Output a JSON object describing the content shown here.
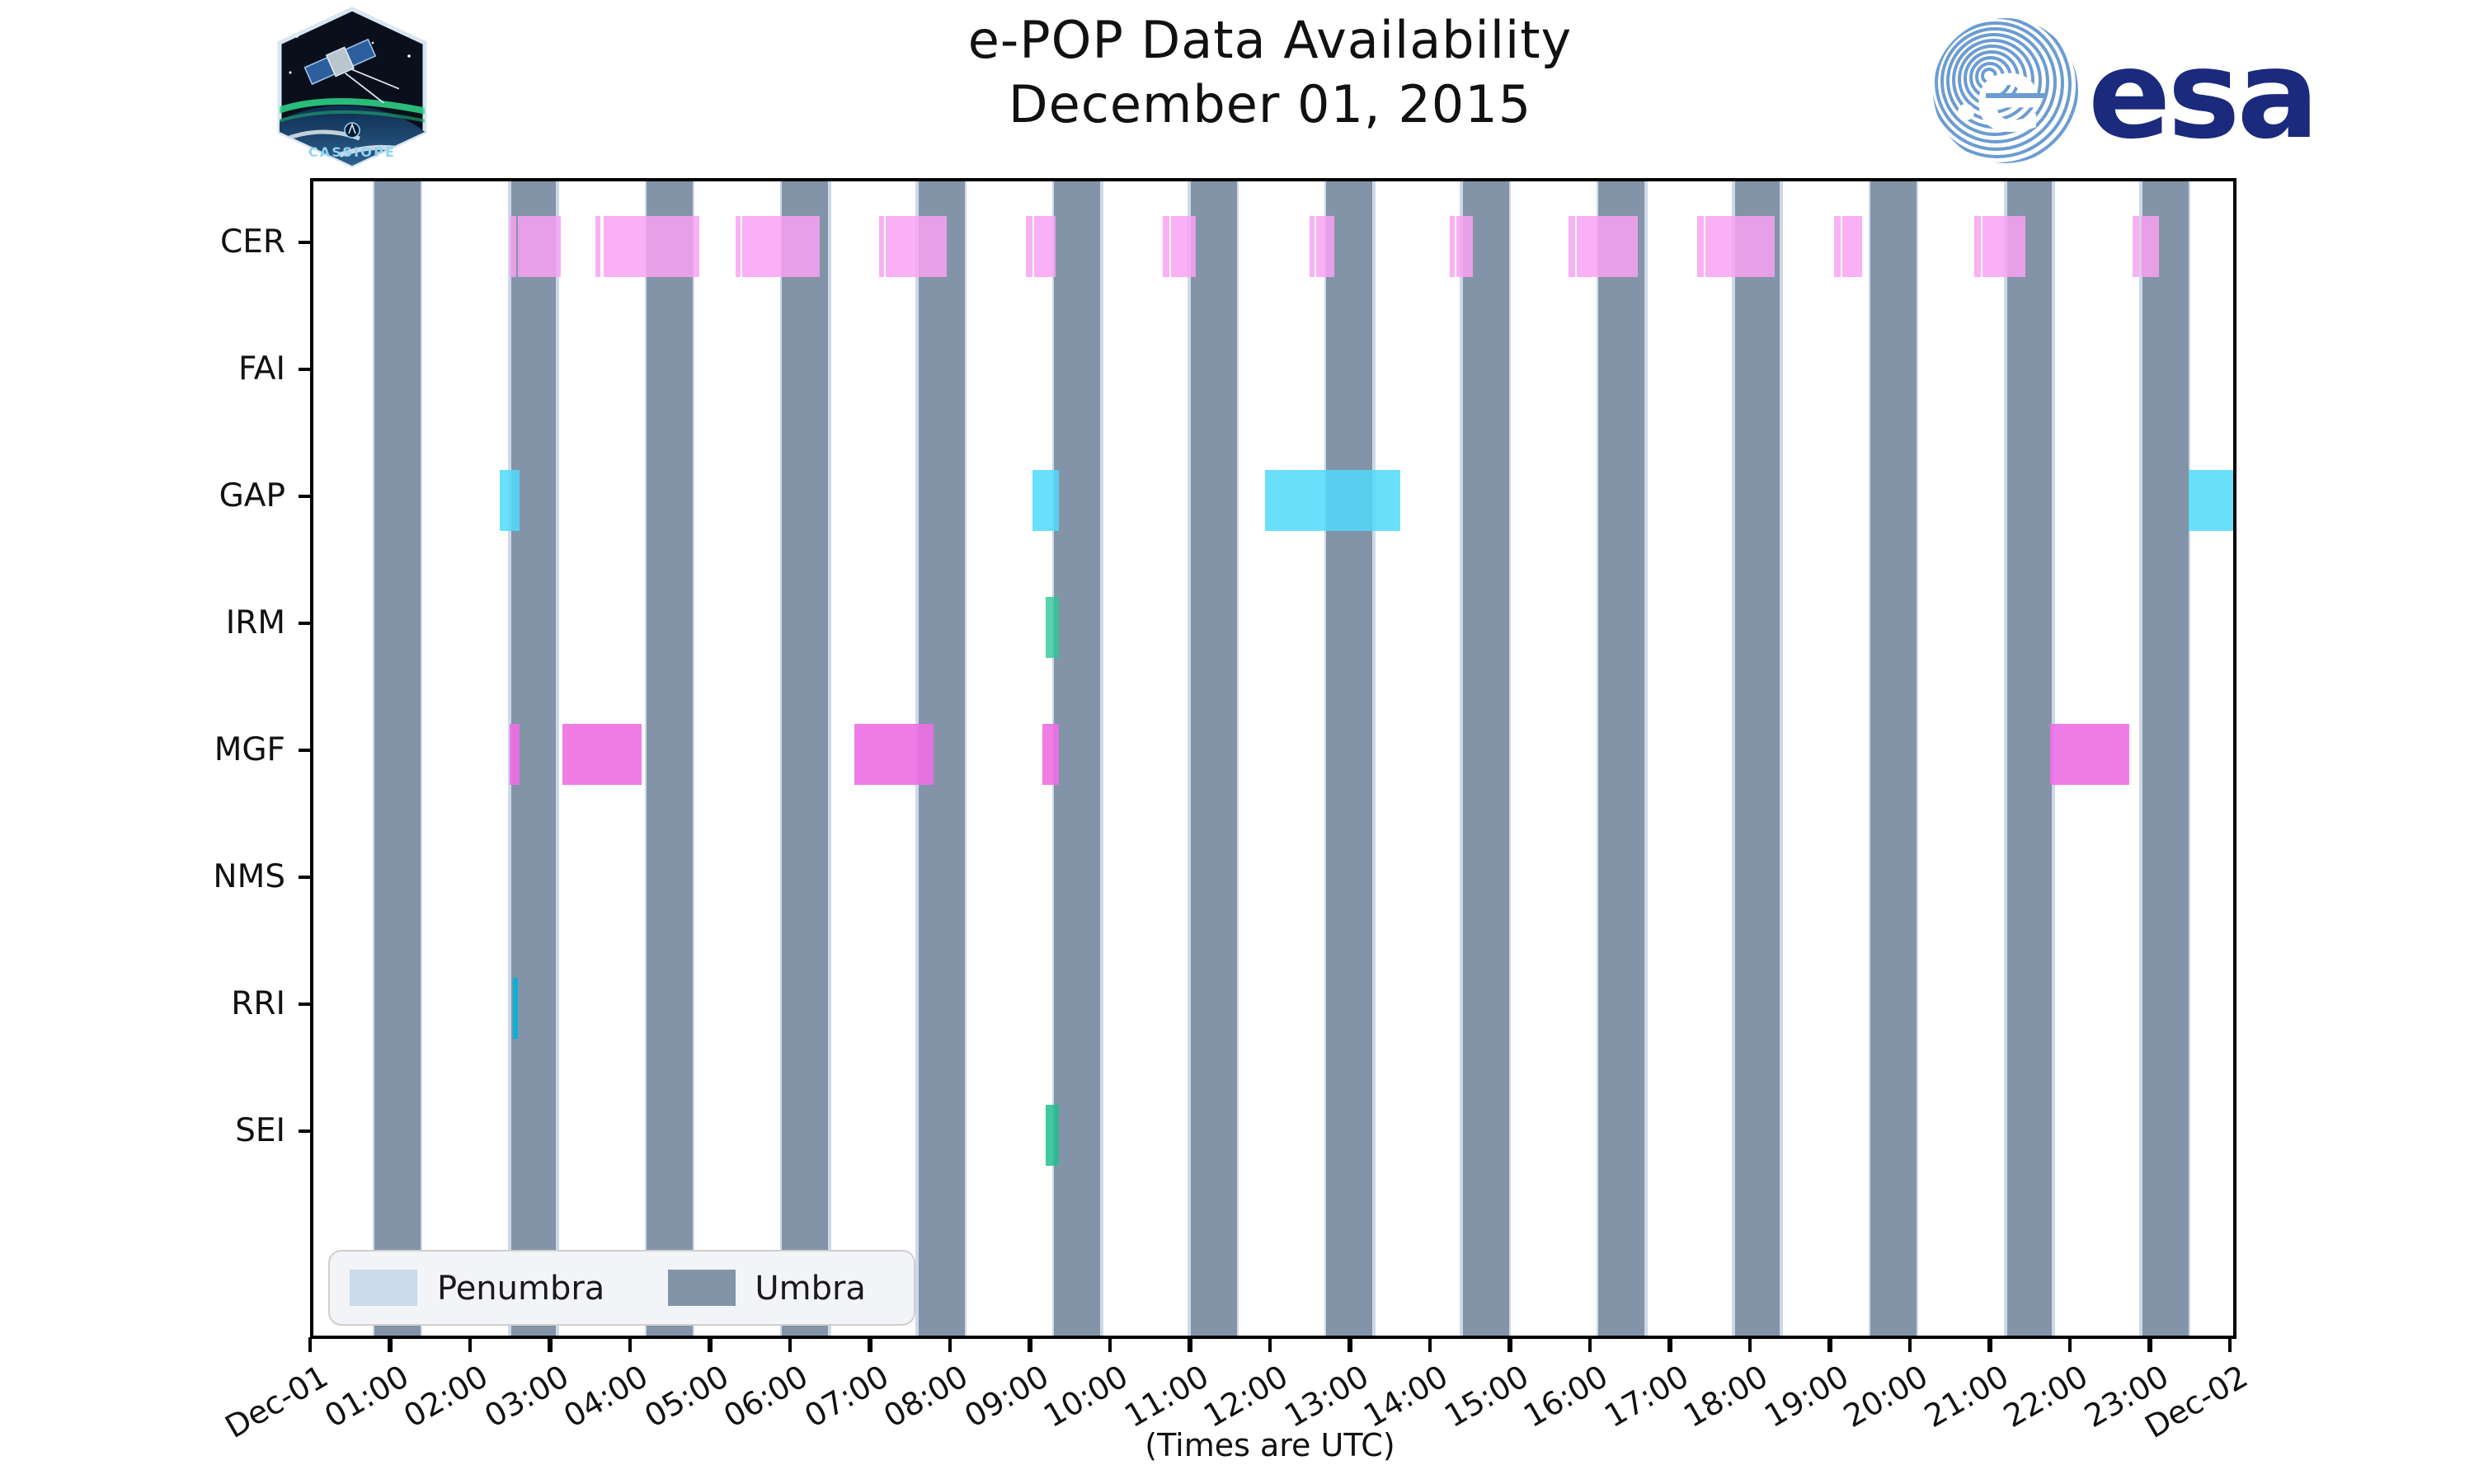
{
  "header": {
    "title_line1": "e-POP Data Availability",
    "title_line2": "December 01, 2015",
    "cassiope_patch_label": "CASSIOPE",
    "esa_logo_text": "esa"
  },
  "xlabel": "(Times are UTC)",
  "legend": {
    "items": [
      {
        "label": "Penumbra",
        "color": "#ccd9e8"
      },
      {
        "label": "Umbra",
        "color": "#8494a8"
      }
    ]
  },
  "chart_data": {
    "type": "timeline",
    "title": "e-POP Data Availability",
    "subtitle": "December 01, 2015",
    "x_axis": {
      "start": "Dec-01 00:00 UTC",
      "end": "Dec-02 00:00 UTC",
      "range_hours": [
        0,
        24
      ],
      "tick_labels": [
        "Dec-01",
        "01:00",
        "02:00",
        "03:00",
        "04:00",
        "05:00",
        "06:00",
        "07:00",
        "08:00",
        "09:00",
        "10:00",
        "11:00",
        "12:00",
        "13:00",
        "14:00",
        "15:00",
        "16:00",
        "17:00",
        "18:00",
        "19:00",
        "20:00",
        "21:00",
        "22:00",
        "23:00",
        "Dec-02"
      ],
      "tick_rotation_deg": 30
    },
    "y_categories": [
      "CER",
      "FAI",
      "GAP",
      "IRM",
      "MGF",
      "NMS",
      "RRI",
      "SEI"
    ],
    "umbra_bands_hours": [
      [
        0.765,
        1.34
      ],
      [
        2.465,
        3.04
      ],
      [
        4.165,
        4.74
      ],
      [
        5.865,
        6.44
      ],
      [
        7.565,
        8.14
      ],
      [
        9.265,
        9.84
      ],
      [
        10.965,
        11.54
      ],
      [
        12.665,
        13.24
      ],
      [
        14.365,
        14.94
      ],
      [
        16.065,
        16.64
      ],
      [
        17.765,
        18.34
      ],
      [
        19.465,
        20.04
      ],
      [
        21.165,
        21.74
      ],
      [
        22.865,
        23.44
      ]
    ],
    "series": [
      {
        "name": "CER",
        "color": "rgba(248,162,242,0.85)",
        "intervals_hours": [
          [
            2.45,
            2.53
          ],
          [
            2.55,
            3.09
          ],
          [
            3.53,
            3.59
          ],
          [
            3.62,
            4.82
          ],
          [
            5.28,
            5.35
          ],
          [
            5.37,
            6.33
          ],
          [
            7.08,
            7.13
          ],
          [
            7.16,
            7.92
          ],
          [
            8.91,
            8.99
          ],
          [
            9.01,
            9.27
          ],
          [
            10.62,
            10.7
          ],
          [
            10.72,
            11.03
          ],
          [
            12.45,
            12.52
          ],
          [
            12.54,
            12.77
          ],
          [
            14.21,
            14.27
          ],
          [
            14.29,
            14.5
          ],
          [
            15.7,
            15.77
          ],
          [
            15.79,
            16.55
          ],
          [
            17.3,
            17.38
          ],
          [
            17.4,
            18.26
          ],
          [
            19.01,
            19.09
          ],
          [
            19.11,
            19.36
          ],
          [
            20.77,
            20.85
          ],
          [
            20.87,
            21.41
          ],
          [
            22.75,
            22.83
          ],
          [
            22.85,
            23.07
          ]
        ]
      },
      {
        "name": "FAI",
        "color": null,
        "intervals_hours": []
      },
      {
        "name": "GAP",
        "color": "rgba(80,217,250,0.85)",
        "intervals_hours": [
          [
            2.34,
            2.57
          ],
          [
            8.99,
            9.33
          ],
          [
            11.89,
            13.59
          ],
          [
            23.45,
            24.0
          ]
        ]
      },
      {
        "name": "IRM",
        "color": "rgba(46,200,150,0.80)",
        "intervals_hours": [
          [
            9.15,
            9.32
          ]
        ]
      },
      {
        "name": "MGF",
        "color": "rgba(238,110,227,0.90)",
        "intervals_hours": [
          [
            2.46,
            2.57
          ],
          [
            3.11,
            4.11
          ],
          [
            6.76,
            7.76
          ],
          [
            9.11,
            9.32
          ],
          [
            21.71,
            22.7
          ]
        ]
      },
      {
        "name": "NMS",
        "color": null,
        "intervals_hours": []
      },
      {
        "name": "RRI",
        "color": "rgba(0,178,218,0.90)",
        "intervals_hours": [
          [
            2.5,
            2.56
          ]
        ]
      },
      {
        "name": "SEI",
        "color": "rgba(34,190,145,0.85)",
        "intervals_hours": [
          [
            9.16,
            9.33
          ]
        ]
      }
    ],
    "colors": {
      "umbra": "#8494a8",
      "penumbra": "#ccd9e8",
      "background": "#ffffff"
    },
    "grid": false,
    "legend_position": "lower left"
  }
}
